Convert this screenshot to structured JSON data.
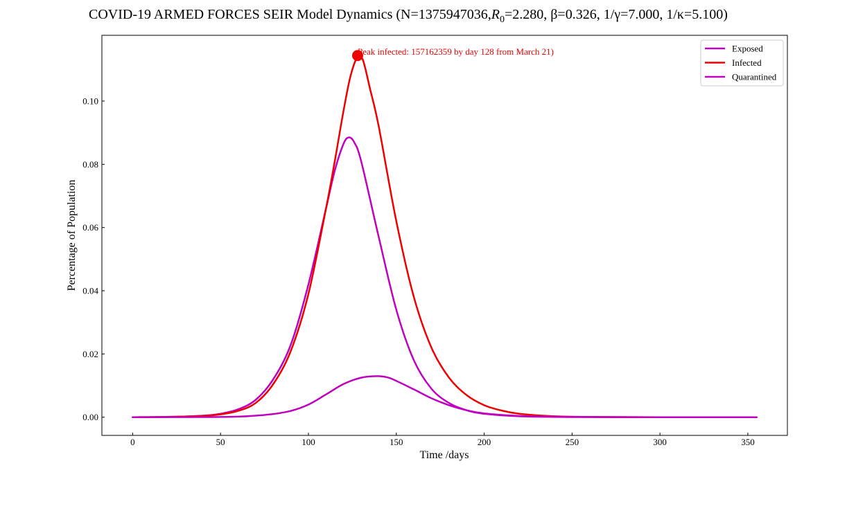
{
  "chart_data": {
    "type": "line",
    "title": "COVID-19 ARMED FORCES SEIR Model Dynamics (N=1375947036,",
    "title_r0_symbol": "R",
    "title_r0_sub": "0",
    "title_params": "=2.280, β=0.326, 1/γ=7.000, 1/κ=5.100)",
    "xlabel": "Time /days",
    "ylabel": "Percentage of Population",
    "xlim": [
      -17.5,
      372.5
    ],
    "ylim": [
      -0.00575,
      0.1208
    ],
    "x_ticks": [
      0,
      50,
      100,
      150,
      200,
      250,
      300,
      350
    ],
    "y_ticks": [
      0.0,
      0.02,
      0.04,
      0.06,
      0.08,
      0.1
    ],
    "y_tick_labels": [
      "0.00",
      "0.02",
      "0.04",
      "0.06",
      "0.08",
      "0.10"
    ],
    "grid": false,
    "legend_position": "top-right",
    "series": [
      {
        "name": "Exposed",
        "color": "#bf00bf",
        "points": [
          [
            0,
            0
          ],
          [
            20,
            0.0001
          ],
          [
            40,
            0.0005
          ],
          [
            50,
            0.0011
          ],
          [
            60,
            0.0025
          ],
          [
            70,
            0.0055
          ],
          [
            80,
            0.012
          ],
          [
            90,
            0.023
          ],
          [
            100,
            0.042
          ],
          [
            110,
            0.066
          ],
          [
            115,
            0.078
          ],
          [
            120,
            0.0865
          ],
          [
            123,
            0.0885
          ],
          [
            126,
            0.087
          ],
          [
            130,
            0.081
          ],
          [
            140,
            0.057
          ],
          [
            150,
            0.034
          ],
          [
            160,
            0.018
          ],
          [
            170,
            0.009
          ],
          [
            180,
            0.0045
          ],
          [
            190,
            0.0022
          ],
          [
            200,
            0.0011
          ],
          [
            220,
            0.0003
          ],
          [
            250,
            5e-05
          ],
          [
            300,
            0
          ],
          [
            355,
            0
          ]
        ]
      },
      {
        "name": "Infected",
        "color": "#ee0000",
        "points": [
          [
            0,
            0
          ],
          [
            20,
            0.0001
          ],
          [
            40,
            0.0004
          ],
          [
            50,
            0.0009
          ],
          [
            60,
            0.002
          ],
          [
            70,
            0.0045
          ],
          [
            80,
            0.0105
          ],
          [
            90,
            0.021
          ],
          [
            100,
            0.039
          ],
          [
            110,
            0.066
          ],
          [
            115,
            0.081
          ],
          [
            120,
            0.097
          ],
          [
            124,
            0.108
          ],
          [
            128,
            0.114
          ],
          [
            131,
            0.113
          ],
          [
            135,
            0.104
          ],
          [
            140,
            0.092
          ],
          [
            150,
            0.062
          ],
          [
            160,
            0.038
          ],
          [
            170,
            0.022
          ],
          [
            180,
            0.0125
          ],
          [
            190,
            0.007
          ],
          [
            200,
            0.0038
          ],
          [
            210,
            0.0021
          ],
          [
            220,
            0.0011
          ],
          [
            240,
            0.0003
          ],
          [
            270,
            5e-05
          ],
          [
            300,
            0
          ],
          [
            355,
            0
          ]
        ]
      },
      {
        "name": "Quarantined",
        "color": "#bf00bf",
        "points": [
          [
            0,
            0
          ],
          [
            40,
            5e-05
          ],
          [
            60,
            0.0002
          ],
          [
            70,
            0.0005
          ],
          [
            80,
            0.001
          ],
          [
            90,
            0.002
          ],
          [
            100,
            0.004
          ],
          [
            110,
            0.0072
          ],
          [
            120,
            0.0105
          ],
          [
            130,
            0.0125
          ],
          [
            139,
            0.013
          ],
          [
            145,
            0.0126
          ],
          [
            150,
            0.0115
          ],
          [
            160,
            0.0088
          ],
          [
            170,
            0.006
          ],
          [
            180,
            0.0038
          ],
          [
            190,
            0.0022
          ],
          [
            200,
            0.0012
          ],
          [
            220,
            0.0004
          ],
          [
            250,
            0.0001
          ],
          [
            300,
            0
          ],
          [
            355,
            0
          ]
        ]
      }
    ],
    "peak": {
      "day": 128,
      "value": 0.1144,
      "color": "#ee0000",
      "label": "Peak infected: 157162359 by day 128 from March 21)"
    }
  }
}
